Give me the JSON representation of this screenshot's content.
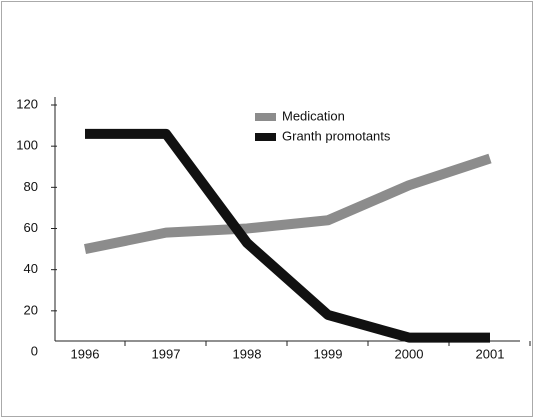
{
  "chart_data": {
    "type": "line",
    "categories": [
      "1996",
      "1997",
      "1998",
      "1999",
      "2000",
      "2001"
    ],
    "series": [
      {
        "name": "Medication",
        "color": "#8c8c8c",
        "values": [
          50,
          58,
          60,
          64,
          81,
          94
        ]
      },
      {
        "name": "Granth promotants",
        "color": "#111111",
        "values": [
          106,
          106,
          53,
          18,
          7,
          7
        ]
      }
    ],
    "ylim": [
      0,
      120
    ],
    "yticks": [
      0,
      20,
      40,
      60,
      80,
      100,
      120
    ],
    "grid": false
  }
}
